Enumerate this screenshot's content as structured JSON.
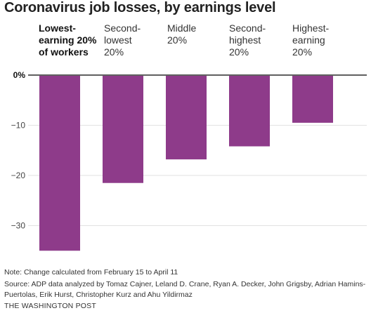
{
  "chart_data": {
    "type": "bar",
    "title": "Coronavirus job losses, by earnings level",
    "categories": [
      "Lowest-\nearning 20%\nof workers",
      "Second-\nlowest\n20%",
      "Middle\n20%",
      "Second-\nhighest\n20%",
      "Highest-\nearning\n20%"
    ],
    "values": [
      -35,
      -21.5,
      -16.8,
      -14.2,
      -9.5
    ],
    "ylim": [
      -35,
      0
    ],
    "yticks": [
      0,
      -10,
      -20,
      -30
    ],
    "ytick_labels": [
      "0%",
      "−10",
      "−20",
      "−30"
    ],
    "xlabel": "",
    "ylabel": "",
    "bar_color": "#8e3b8a",
    "grid": true
  },
  "notes": {
    "note": "Note: Change calculated from February 15 to April 11",
    "source": "Source: ADP data analyzed by Tomaz Cajner, Leland D. Crane, Ryan A. Decker, John Grigsby, Adrian Hamins-Puertolas, Erik Hurst, Christopher Kurz and Ahu Yildirmaz",
    "credit": "THE WASHINGTON POST"
  }
}
